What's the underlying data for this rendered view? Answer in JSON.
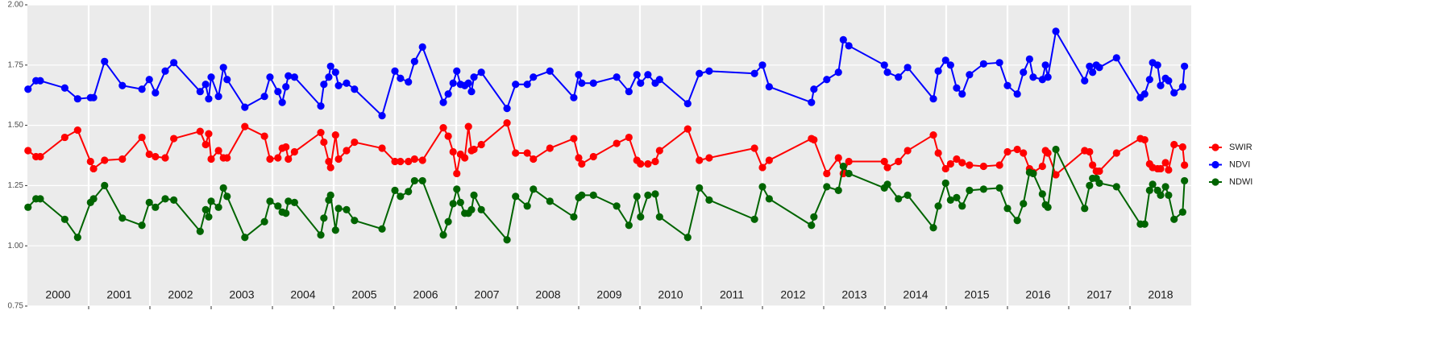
{
  "chart_data": {
    "type": "line",
    "x": [
      2000.01,
      2000.14,
      2000.21,
      2000.61,
      2000.82,
      2001.03,
      2001.08,
      2001.26,
      2001.55,
      2001.87,
      2001.99,
      2002.09,
      2002.25,
      2002.39,
      2002.82,
      2002.91,
      2002.96,
      2003.0,
      2003.12,
      2003.2,
      2003.26,
      2003.55,
      2003.87,
      2003.96,
      2004.09,
      2004.16,
      2004.22,
      2004.26,
      2004.36,
      2004.79,
      2004.84,
      2004.92,
      2004.95,
      2005.03,
      2005.08,
      2005.21,
      2005.34,
      2005.79,
      2006.0,
      2006.09,
      2006.22,
      2006.32,
      2006.45,
      2006.79,
      2006.87,
      2006.95,
      2007.01,
      2007.07,
      2007.14,
      2007.2,
      2007.25,
      2007.29,
      2007.41,
      2007.83,
      2007.97,
      2008.16,
      2008.26,
      2008.53,
      2008.92,
      2009.0,
      2009.05,
      2009.24,
      2009.62,
      2009.82,
      2009.95,
      2010.01,
      2010.13,
      2010.25,
      2010.32,
      2010.78,
      2010.97,
      2011.13,
      2011.87,
      2012.0,
      2012.11,
      2012.8,
      2012.84,
      2013.05,
      2013.24,
      2013.32,
      2013.41,
      2013.99,
      2014.04,
      2014.22,
      2014.37,
      2014.79,
      2014.87,
      2014.99,
      2015.07,
      2015.17,
      2015.26,
      2015.38,
      2015.61,
      2015.87,
      2016.0,
      2016.16,
      2016.26,
      2016.36,
      2016.42,
      2016.57,
      2016.62,
      2016.66,
      2016.79,
      2017.26,
      2017.34,
      2017.39,
      2017.45,
      2017.5,
      2017.78,
      2018.17,
      2018.24,
      2018.32,
      2018.37,
      2018.45,
      2018.5,
      2018.58,
      2018.63,
      2018.72,
      2018.86,
      2018.89
    ],
    "series": [
      {
        "name": "SWIR",
        "color": "#ff0000",
        "values": [
          1.395,
          1.37,
          1.37,
          1.45,
          1.48,
          1.35,
          1.32,
          1.355,
          1.36,
          1.45,
          1.38,
          1.37,
          1.365,
          1.445,
          1.475,
          1.42,
          1.465,
          1.36,
          1.395,
          1.365,
          1.365,
          1.495,
          1.455,
          1.36,
          1.365,
          1.405,
          1.41,
          1.36,
          1.39,
          1.47,
          1.43,
          1.35,
          1.325,
          1.46,
          1.36,
          1.395,
          1.43,
          1.405,
          1.35,
          1.35,
          1.35,
          1.36,
          1.355,
          1.49,
          1.455,
          1.39,
          1.3,
          1.38,
          1.365,
          1.495,
          1.395,
          1.4,
          1.42,
          1.51,
          1.385,
          1.385,
          1.36,
          1.405,
          1.445,
          1.365,
          1.34,
          1.37,
          1.425,
          1.45,
          1.355,
          1.34,
          1.34,
          1.35,
          1.395,
          1.485,
          1.355,
          1.365,
          1.405,
          1.325,
          1.355,
          1.445,
          1.44,
          1.3,
          1.365,
          1.3,
          1.35,
          1.35,
          1.325,
          1.35,
          1.395,
          1.46,
          1.385,
          1.32,
          1.34,
          1.36,
          1.345,
          1.335,
          1.33,
          1.335,
          1.39,
          1.4,
          1.385,
          1.32,
          1.305,
          1.33,
          1.395,
          1.385,
          1.295,
          1.395,
          1.39,
          1.335,
          1.31,
          1.31,
          1.385,
          1.445,
          1.44,
          1.34,
          1.325,
          1.32,
          1.32,
          1.345,
          1.315,
          1.42,
          1.41,
          1.335
        ]
      },
      {
        "name": "NDVI",
        "color": "#0000ff",
        "values": [
          1.65,
          1.685,
          1.685,
          1.655,
          1.61,
          1.615,
          1.615,
          1.765,
          1.665,
          1.65,
          1.69,
          1.635,
          1.725,
          1.76,
          1.64,
          1.67,
          1.61,
          1.7,
          1.62,
          1.74,
          1.69,
          1.575,
          1.62,
          1.7,
          1.64,
          1.595,
          1.66,
          1.705,
          1.7,
          1.58,
          1.67,
          1.7,
          1.745,
          1.72,
          1.665,
          1.675,
          1.65,
          1.54,
          1.725,
          1.695,
          1.68,
          1.765,
          1.825,
          1.595,
          1.63,
          1.675,
          1.725,
          1.67,
          1.665,
          1.675,
          1.64,
          1.7,
          1.72,
          1.57,
          1.67,
          1.67,
          1.7,
          1.725,
          1.615,
          1.71,
          1.675,
          1.675,
          1.7,
          1.64,
          1.71,
          1.675,
          1.71,
          1.675,
          1.69,
          1.59,
          1.715,
          1.725,
          1.715,
          1.75,
          1.66,
          1.595,
          1.65,
          1.69,
          1.72,
          1.855,
          1.83,
          1.75,
          1.72,
          1.7,
          1.74,
          1.61,
          1.725,
          1.77,
          1.75,
          1.655,
          1.63,
          1.71,
          1.755,
          1.76,
          1.665,
          1.63,
          1.72,
          1.775,
          1.7,
          1.69,
          1.75,
          1.7,
          1.89,
          1.685,
          1.745,
          1.72,
          1.75,
          1.74,
          1.78,
          1.615,
          1.63,
          1.69,
          1.76,
          1.75,
          1.665,
          1.695,
          1.685,
          1.635,
          1.66,
          1.745
        ]
      },
      {
        "name": "NDWI",
        "color": "#006400",
        "values": [
          1.16,
          1.195,
          1.195,
          1.11,
          1.035,
          1.18,
          1.195,
          1.25,
          1.115,
          1.085,
          1.18,
          1.16,
          1.195,
          1.19,
          1.06,
          1.15,
          1.12,
          1.185,
          1.16,
          1.24,
          1.205,
          1.035,
          1.1,
          1.185,
          1.165,
          1.14,
          1.135,
          1.185,
          1.18,
          1.045,
          1.115,
          1.19,
          1.21,
          1.065,
          1.155,
          1.15,
          1.105,
          1.07,
          1.23,
          1.205,
          1.225,
          1.27,
          1.27,
          1.045,
          1.1,
          1.175,
          1.235,
          1.18,
          1.135,
          1.135,
          1.15,
          1.21,
          1.15,
          1.025,
          1.205,
          1.165,
          1.235,
          1.185,
          1.12,
          1.2,
          1.21,
          1.21,
          1.165,
          1.085,
          1.205,
          1.12,
          1.21,
          1.215,
          1.12,
          1.035,
          1.24,
          1.19,
          1.11,
          1.245,
          1.195,
          1.085,
          1.12,
          1.245,
          1.23,
          1.33,
          1.3,
          1.24,
          1.255,
          1.195,
          1.21,
          1.075,
          1.165,
          1.26,
          1.19,
          1.2,
          1.165,
          1.23,
          1.235,
          1.24,
          1.155,
          1.105,
          1.175,
          1.305,
          1.3,
          1.215,
          1.17,
          1.16,
          1.4,
          1.155,
          1.25,
          1.28,
          1.28,
          1.26,
          1.245,
          1.09,
          1.09,
          1.23,
          1.255,
          1.23,
          1.21,
          1.245,
          1.21,
          1.11,
          1.14,
          1.27
        ]
      }
    ],
    "xlim": [
      2000,
      2019
    ],
    "xticks": [
      2001,
      2002,
      2003,
      2004,
      2005,
      2006,
      2007,
      2008,
      2009,
      2010,
      2011,
      2012,
      2013,
      2014,
      2015,
      2016,
      2017,
      2018
    ],
    "year_labels": [
      "2000",
      "2001",
      "2002",
      "2003",
      "2004",
      "2005",
      "2006",
      "2007",
      "2008",
      "2009",
      "2010",
      "2011",
      "2012",
      "2013",
      "2014",
      "2015",
      "2016",
      "2017",
      "2018"
    ],
    "ylim": [
      0.75,
      2.0
    ],
    "yticks": [
      {
        "value": 0.75,
        "label": "0.75"
      },
      {
        "value": 1.0,
        "label": "1.00"
      },
      {
        "value": 1.25,
        "label": "1.25"
      },
      {
        "value": 1.5,
        "label": "1.50"
      },
      {
        "value": 1.75,
        "label": "1.75"
      },
      {
        "value": 2.0,
        "label": "2.00"
      }
    ],
    "grid": true,
    "legend": "right"
  }
}
